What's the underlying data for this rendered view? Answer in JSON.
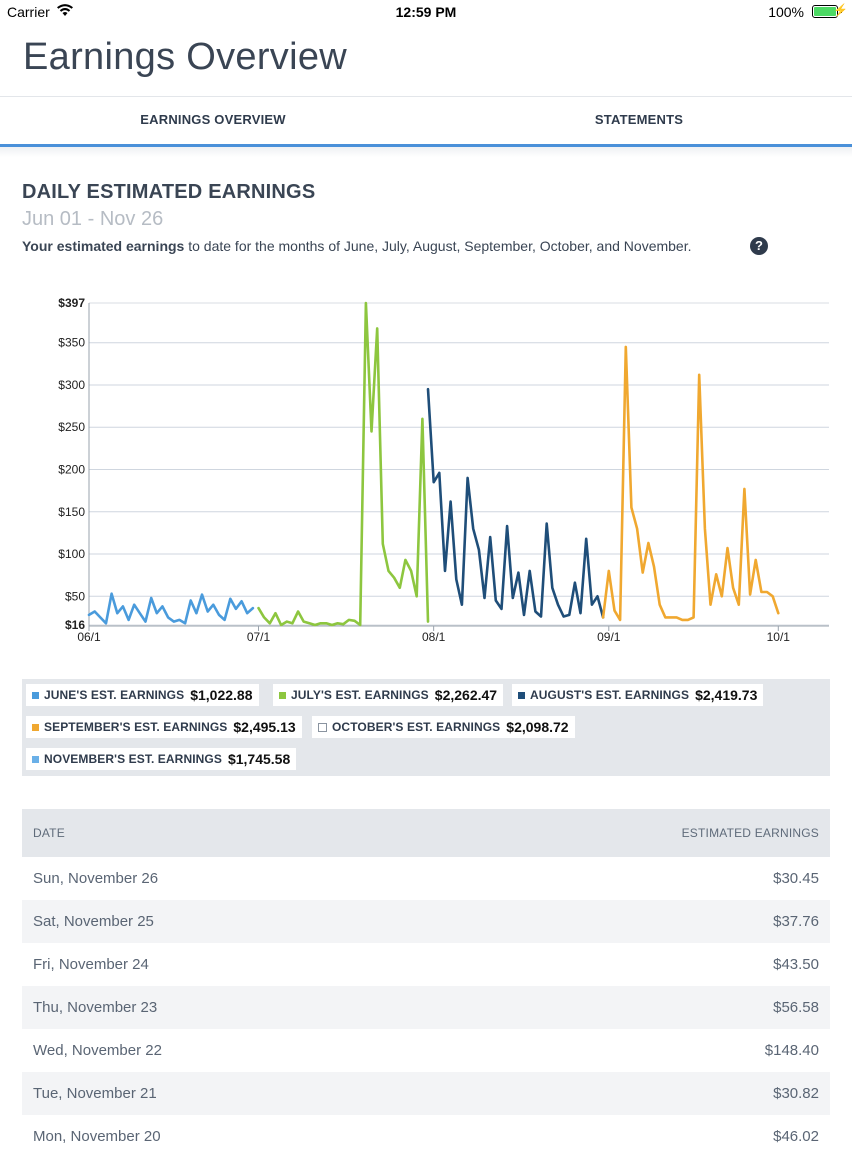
{
  "status_bar": {
    "carrier": "Carrier",
    "time": "12:59 PM",
    "battery": "100%"
  },
  "page_title": "Earnings Overview",
  "tabs": [
    {
      "label": "EARNINGS OVERVIEW",
      "active": true
    },
    {
      "label": "STATEMENTS",
      "active": false
    }
  ],
  "section": {
    "title": "DAILY ESTIMATED EARNINGS",
    "range": "Jun 01 - Nov 26",
    "desc_bold": "Your estimated earnings",
    "desc_rest": " to date for the months of June, July, August, September, October, and November."
  },
  "chart_data": {
    "type": "line",
    "y_tick_labels": [
      "$397",
      "$350",
      "$300",
      "$250",
      "$200",
      "$150",
      "$100",
      "$50",
      "$16"
    ],
    "y_ticks": [
      397,
      350,
      300,
      250,
      200,
      150,
      100,
      50,
      16
    ],
    "ylim": [
      16,
      397
    ],
    "x_tick_labels": [
      "06/1",
      "07/1",
      "08/1",
      "09/1",
      "10/1"
    ],
    "x_ticks": [
      0,
      30,
      61,
      92,
      122
    ],
    "xlim": [
      0,
      130
    ],
    "grid": true,
    "series": [
      {
        "name": "JUNE'S EST. EARNINGS",
        "color": "#4a9bdc",
        "x": [
          0,
          1,
          2,
          3,
          4,
          5,
          6,
          7,
          8,
          9,
          10,
          11,
          12,
          13,
          14,
          15,
          16,
          17,
          18,
          19,
          20,
          21,
          22,
          23,
          24,
          25,
          26,
          27,
          28,
          29
        ],
        "y": [
          28,
          32,
          25,
          18,
          53,
          30,
          38,
          22,
          40,
          30,
          20,
          48,
          30,
          38,
          25,
          20,
          22,
          18,
          45,
          30,
          52,
          32,
          40,
          28,
          22,
          47,
          35,
          44,
          30,
          36
        ]
      },
      {
        "name": "JULY'S EST. EARNINGS",
        "color": "#8dc63f",
        "x": [
          30,
          31,
          32,
          33,
          34,
          35,
          36,
          37,
          38,
          39,
          40,
          41,
          42,
          43,
          44,
          45,
          46,
          47,
          48,
          49,
          50,
          51,
          52,
          53,
          54,
          55,
          56,
          57,
          58,
          59,
          60
        ],
        "y": [
          36,
          25,
          18,
          30,
          16,
          20,
          18,
          32,
          20,
          18,
          16,
          18,
          18,
          16,
          18,
          17,
          22,
          21,
          16,
          397,
          245,
          367,
          112,
          80,
          72,
          60,
          93,
          80,
          50,
          260,
          20
        ]
      },
      {
        "name": "AUGUST'S EST. EARNINGS",
        "color": "#1f4e79",
        "x": [
          60,
          61,
          62,
          63,
          64,
          65,
          66,
          67,
          68,
          69,
          70,
          71,
          72,
          73,
          74,
          75,
          76,
          77,
          78,
          79,
          80,
          81,
          82,
          83,
          84,
          85,
          86,
          87,
          88,
          89,
          90,
          91
        ],
        "y": [
          295,
          185,
          196,
          80,
          162,
          70,
          40,
          190,
          130,
          105,
          48,
          120,
          45,
          35,
          133,
          48,
          78,
          28,
          80,
          32,
          26,
          136,
          60,
          40,
          26,
          28,
          66,
          30,
          118,
          40,
          50,
          25
        ]
      },
      {
        "name": "SEPTEMBER'S EST. EARNINGS",
        "color": "#f0a830",
        "x": [
          91,
          92,
          93,
          94,
          95,
          96,
          97,
          98,
          99,
          100,
          101,
          102,
          103,
          104,
          105,
          106,
          107,
          108,
          109,
          110,
          111,
          112,
          113,
          114,
          115,
          116,
          117,
          118,
          119,
          120,
          121,
          122
        ],
        "y": [
          25,
          80,
          33,
          22,
          345,
          155,
          130,
          78,
          113,
          85,
          40,
          25,
          25,
          25,
          22,
          22,
          25,
          312,
          130,
          40,
          76,
          50,
          107,
          60,
          40,
          177,
          52,
          93,
          55,
          55,
          50,
          30
        ]
      }
    ],
    "legend": [
      {
        "label": "JUNE'S EST. EARNINGS",
        "value": "$1,022.88",
        "color": "#4a9bdc"
      },
      {
        "label": "JULY'S EST. EARNINGS",
        "value": "$2,262.47",
        "color": "#8dc63f"
      },
      {
        "label": "AUGUST'S EST. EARNINGS",
        "value": "$2,419.73",
        "color": "#1f4e79"
      },
      {
        "label": "SEPTEMBER'S EST. EARNINGS",
        "value": "$2,495.13",
        "color": "#f0a830"
      },
      {
        "label": "OCTOBER'S EST. EARNINGS",
        "value": "$2,098.72",
        "color": "#ffffff"
      },
      {
        "label": "NOVEMBER'S EST. EARNINGS",
        "value": "$1,745.58",
        "color": "#6ab0e8"
      }
    ]
  },
  "table": {
    "headers": {
      "date": "DATE",
      "amount": "ESTIMATED EARNINGS"
    },
    "rows": [
      {
        "date": "Sun, November 26",
        "amount": "$30.45"
      },
      {
        "date": "Sat, November 25",
        "amount": "$37.76"
      },
      {
        "date": "Fri, November 24",
        "amount": "$43.50"
      },
      {
        "date": "Thu, November 23",
        "amount": "$56.58"
      },
      {
        "date": "Wed, November 22",
        "amount": "$148.40"
      },
      {
        "date": "Tue, November 21",
        "amount": "$30.82"
      },
      {
        "date": "Mon, November 20",
        "amount": "$46.02"
      }
    ]
  }
}
